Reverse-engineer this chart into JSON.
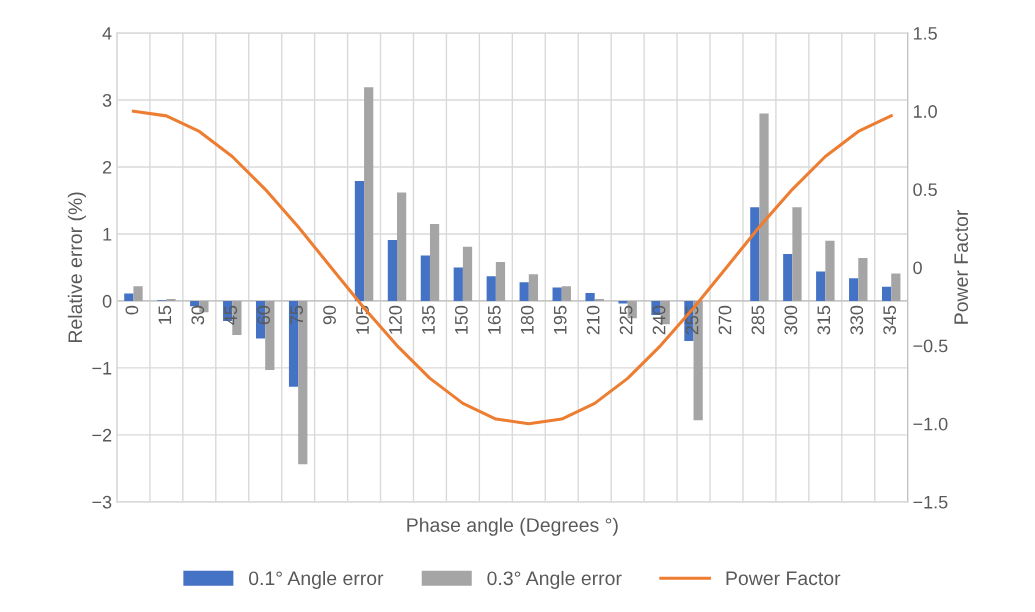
{
  "chart_data": {
    "type": "bar",
    "xlabel": "Phase angle (Degrees °)",
    "ylabel": "Relative error (%)",
    "y2label": "Power Factor",
    "categories": [
      "0",
      "15",
      "30",
      "45",
      "60",
      "75",
      "90",
      "105",
      "120",
      "135",
      "150",
      "165",
      "180",
      "195",
      "210",
      "225",
      "240",
      "255",
      "270",
      "285",
      "300",
      "315",
      "330",
      "345"
    ],
    "series": [
      {
        "name": "0.1° Angle error",
        "color": "#4472c4",
        "values": [
          0.11,
          0.01,
          -0.08,
          -0.3,
          -0.56,
          -1.28,
          0,
          1.79,
          0.91,
          0.68,
          0.5,
          0.37,
          0.28,
          0.2,
          0.12,
          -0.04,
          -0.21,
          -0.6,
          0,
          1.4,
          0.7,
          0.44,
          0.34,
          0.21
        ]
      },
      {
        "name": "0.3° Angle error",
        "color": "#a5a5a5",
        "values": [
          0.22,
          0.03,
          -0.17,
          -0.51,
          -1.03,
          -2.44,
          0,
          3.19,
          1.62,
          1.15,
          0.81,
          0.58,
          0.4,
          0.22,
          0.03,
          -0.26,
          -0.35,
          -1.78,
          0,
          2.8,
          1.4,
          0.9,
          0.64,
          0.41
        ]
      },
      {
        "name": "Power Factor",
        "color": "#ed7d31",
        "type": "line",
        "axis": "y2",
        "values": [
          1,
          0.97,
          0.87,
          0.71,
          0.5,
          0.26,
          0,
          -0.26,
          -0.5,
          -0.71,
          -0.87,
          -0.97,
          -1,
          -0.97,
          -0.87,
          -0.71,
          -0.5,
          -0.26,
          0,
          0.26,
          0.5,
          0.71,
          0.87,
          0.97
        ]
      }
    ],
    "ylim": [
      -3,
      4
    ],
    "yticks": [
      {
        "value": -3,
        "label": "−3"
      },
      {
        "value": -2,
        "label": "−2"
      },
      {
        "value": -1,
        "label": "−1"
      },
      0,
      1,
      2,
      3,
      4
    ],
    "y2lim": [
      -1.5,
      1.5
    ],
    "y2ticks": [
      {
        "value": -1.5,
        "label": "−1.5"
      },
      {
        "value": -1.0,
        "label": "−1.0"
      },
      {
        "value": -0.5,
        "label": "−0.5"
      },
      0,
      0.5,
      {
        "value": 1.0,
        "label": "1.0"
      },
      1.5
    ],
    "grid": true,
    "legend": "bottom"
  }
}
